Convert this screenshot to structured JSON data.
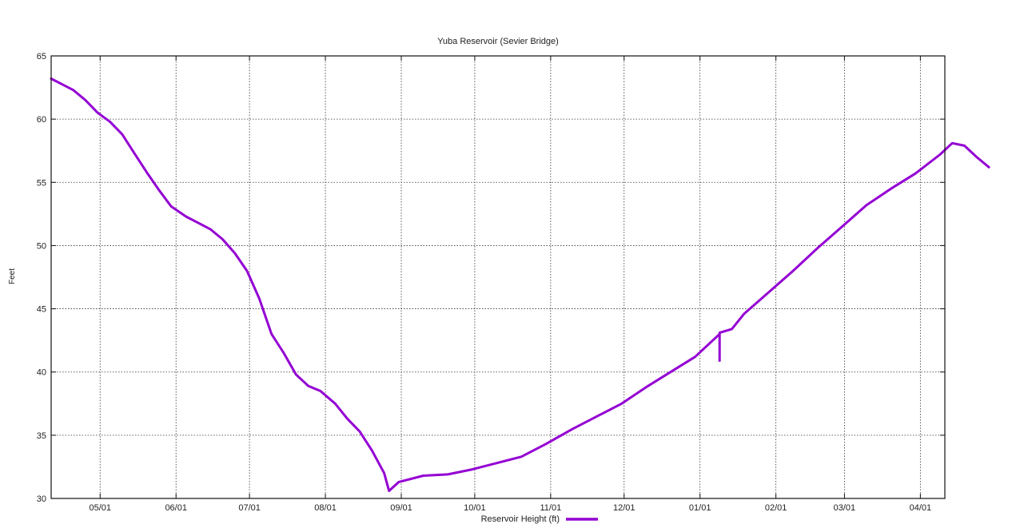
{
  "chart_data": {
    "type": "line",
    "title": "Yuba Reservoir (Sevier Bridge)",
    "xlabel": "",
    "ylabel": "Feet",
    "ylim": [
      30,
      65
    ],
    "yticks": [
      30,
      35,
      40,
      45,
      50,
      55,
      60,
      65
    ],
    "xlim": [
      "04-11",
      "04-11"
    ],
    "x_tick_labels": [
      "05/01",
      "06/01",
      "07/01",
      "08/01",
      "09/01",
      "10/01",
      "11/01",
      "12/01",
      "01/01",
      "02/01",
      "03/01",
      "04/01"
    ],
    "grid": true,
    "legend": {
      "position": "bottom-center"
    },
    "color": "#9400d3",
    "series": [
      {
        "name": "Reservoir Height (ft)",
        "points": [
          [
            "04-11",
            63.2
          ],
          [
            "04-15",
            62.8
          ],
          [
            "04-20",
            62.3
          ],
          [
            "04-25",
            61.5
          ],
          [
            "04-30",
            60.5
          ],
          [
            "05-05",
            59.8
          ],
          [
            "05-10",
            58.8
          ],
          [
            "05-15",
            57.3
          ],
          [
            "05-20",
            55.8
          ],
          [
            "05-25",
            54.4
          ],
          [
            "05-30",
            53.1
          ],
          [
            "06-05",
            52.3
          ],
          [
            "06-10",
            51.8
          ],
          [
            "06-15",
            51.3
          ],
          [
            "06-20",
            50.5
          ],
          [
            "06-25",
            49.4
          ],
          [
            "06-30",
            48.0
          ],
          [
            "07-05",
            45.8
          ],
          [
            "07-10",
            43.0
          ],
          [
            "07-15",
            41.5
          ],
          [
            "07-20",
            39.8
          ],
          [
            "07-25",
            38.9
          ],
          [
            "07-30",
            38.5
          ],
          [
            "08-05",
            37.5
          ],
          [
            "08-10",
            36.3
          ],
          [
            "08-15",
            35.3
          ],
          [
            "08-20",
            33.8
          ],
          [
            "08-25",
            32.0
          ],
          [
            "08-27",
            30.6
          ],
          [
            "08-31",
            31.3
          ],
          [
            "09-10",
            31.8
          ],
          [
            "09-20",
            31.9
          ],
          [
            "09-30",
            32.3
          ],
          [
            "10-10",
            32.8
          ],
          [
            "10-20",
            33.3
          ],
          [
            "10-30",
            34.3
          ],
          [
            "11-10",
            35.5
          ],
          [
            "11-20",
            36.5
          ],
          [
            "11-30",
            37.5
          ],
          [
            "12-10",
            38.8
          ],
          [
            "12-20",
            40.0
          ],
          [
            "12-30",
            41.2
          ],
          [
            "01-09",
            43.0
          ],
          [
            "01-09",
            40.9
          ],
          [
            "01-09",
            43.1
          ],
          [
            "01-14",
            43.4
          ],
          [
            "01-19",
            44.6
          ],
          [
            "01-29",
            46.3
          ],
          [
            "02-08",
            48.0
          ],
          [
            "02-18",
            49.8
          ],
          [
            "02-28",
            51.5
          ],
          [
            "03-10",
            53.2
          ],
          [
            "03-20",
            54.5
          ],
          [
            "03-30",
            55.7
          ],
          [
            "04-09",
            57.2
          ],
          [
            "04-14",
            58.1
          ],
          [
            "04-19",
            57.9
          ],
          [
            "04-24",
            57.0
          ],
          [
            "04-29",
            56.2
          ]
        ]
      }
    ]
  }
}
